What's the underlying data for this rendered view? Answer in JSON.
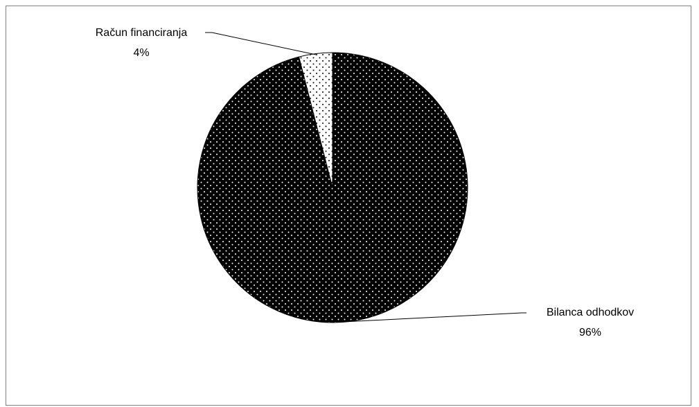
{
  "chart_data": {
    "type": "pie",
    "title": "",
    "slices": [
      {
        "label": "Bilanca odhodkov",
        "value": 96,
        "value_label": "96%",
        "pattern": "dark-dotted"
      },
      {
        "label": "Račun financiranja",
        "value": 4,
        "value_label": "4%",
        "pattern": "light-dotted"
      }
    ],
    "legend": "none",
    "data_labels": "outside-with-leader-lines"
  }
}
